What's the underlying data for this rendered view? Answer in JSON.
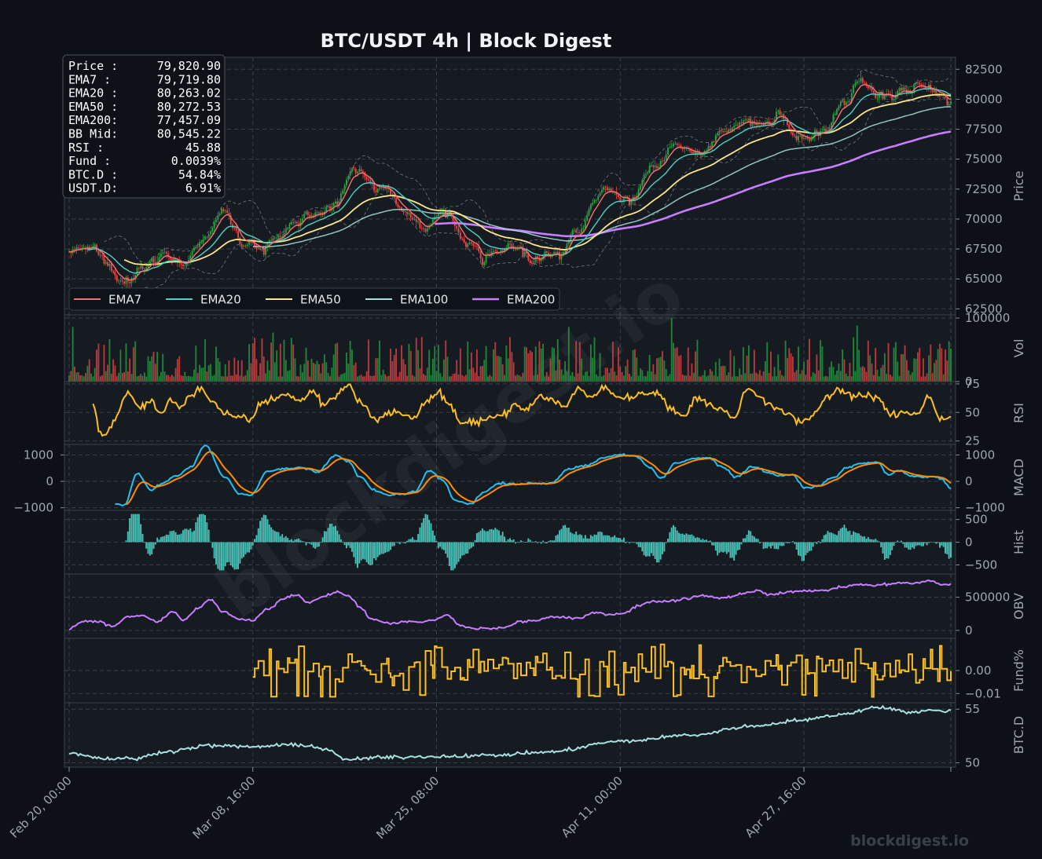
{
  "title": "BTC/USDT  4h  |  Block Digest",
  "watermark": "blockdigest.io",
  "footer": "blockdigest.io",
  "colors": {
    "background": "#0d1117",
    "panel": "#161b22",
    "grid": "#3a4048",
    "candle_up": "#26a641",
    "candle_down": "#ef4444",
    "ema7": "#f87171",
    "ema20": "#4fd1c5",
    "ema50": "#fde68a",
    "ema100": "#a7e0df",
    "ema200": "#c77dff",
    "rsi": "#fbbf24",
    "macd": "#22c0f0",
    "signal": "#ff8c00",
    "hist": "#4fd1c5",
    "obv": "#c77dff",
    "fund": "#fbbf24",
    "btcd": "#a7e0df"
  },
  "info_box": [
    {
      "label": "Price :",
      "value": "79,820.90"
    },
    {
      "label": "EMA7  :",
      "value": "79,719.80"
    },
    {
      "label": "EMA20 :",
      "value": "80,263.02"
    },
    {
      "label": "EMA50 :",
      "value": "80,272.53"
    },
    {
      "label": "EMA200:",
      "value": "77,457.09"
    },
    {
      "label": "BB Mid:",
      "value": "80,545.22"
    },
    {
      "label": "RSI   :",
      "value": "45.88"
    },
    {
      "label": "Fund  :",
      "value": "0.0039%"
    },
    {
      "label": "BTC.D :",
      "value": "54.84%"
    },
    {
      "label": "USDT.D:",
      "value": "6.91%"
    }
  ],
  "legend": [
    "EMA7",
    "EMA20",
    "EMA50",
    "EMA100",
    "EMA200"
  ],
  "chart_data": {
    "type": "line",
    "subtype": "candlestick with indicator panels",
    "x_tick_labels": [
      "Feb 20, 00:00",
      "Mar 08, 16:00",
      "Mar 25, 08:00",
      "Apr 11, 00:00",
      "Apr 27, 16:00"
    ],
    "bars": 481,
    "x_tick_bars": [
      0,
      100,
      200,
      300,
      400
    ],
    "grid": true,
    "legend_position": "bottom-left",
    "panels": [
      {
        "name": "Price",
        "ylabel": "Price",
        "ylim": [
          62000,
          83500
        ],
        "yticks": [
          62500,
          65000,
          67500,
          70000,
          72500,
          75000,
          77500,
          80000,
          82500
        ],
        "tick_labels": [
          "62500",
          "65000",
          "67500",
          "70000",
          "72500",
          "75000",
          "77500",
          "80000",
          "82500"
        ]
      },
      {
        "name": "Vol",
        "ylabel": "Vol",
        "ylim": [
          0,
          105000
        ],
        "yticks": [
          0,
          100000
        ],
        "tick_labels": [
          "0",
          "100000"
        ]
      },
      {
        "name": "RSI",
        "ylabel": "RSI",
        "ylim": [
          22,
          77
        ],
        "yticks": [
          25,
          50,
          75
        ],
        "tick_labels": [
          "25",
          "50",
          "75"
        ]
      },
      {
        "name": "MACD",
        "ylabel": "MACD",
        "ylim": [
          -1100,
          1400
        ],
        "yticks": [
          -1000,
          0,
          1000
        ],
        "tick_labels": [
          "−1000",
          "0",
          "1000"
        ],
        "left_tick_labels": [
          "−1000",
          "0",
          "1000"
        ]
      },
      {
        "name": "Hist",
        "ylabel": "Hist",
        "ylim": [
          -700,
          700
        ],
        "yticks": [
          -500,
          0,
          500
        ],
        "tick_labels": [
          "−500",
          "0",
          "500"
        ]
      },
      {
        "name": "OBV",
        "ylabel": "OBV",
        "ylim": [
          -120000,
          850000
        ],
        "yticks": [
          0,
          500000
        ],
        "tick_labels": [
          "0",
          "500000"
        ]
      },
      {
        "name": "Fund%",
        "ylabel": "Fund%",
        "ylim": [
          -0.014,
          0.014
        ],
        "yticks": [
          -0.01,
          0.0
        ],
        "tick_labels": [
          "−0.01",
          "0.00"
        ]
      },
      {
        "name": "BTC.D",
        "ylabel": "BTC.D",
        "ylim": [
          49.6,
          55.6
        ],
        "yticks": [
          50,
          55
        ],
        "tick_labels": [
          "50",
          "55"
        ]
      }
    ],
    "price_anchors": [
      [
        0,
        67500
      ],
      [
        15,
        67300
      ],
      [
        30,
        64700
      ],
      [
        45,
        66800
      ],
      [
        60,
        66500
      ],
      [
        75,
        68400
      ],
      [
        82,
        70900
      ],
      [
        95,
        68200
      ],
      [
        105,
        67600
      ],
      [
        118,
        69000
      ],
      [
        130,
        70200
      ],
      [
        145,
        71200
      ],
      [
        155,
        74200
      ],
      [
        168,
        72300
      ],
      [
        182,
        70600
      ],
      [
        190,
        69200
      ],
      [
        205,
        70400
      ],
      [
        215,
        68000
      ],
      [
        225,
        66400
      ],
      [
        238,
        67900
      ],
      [
        252,
        66800
      ],
      [
        268,
        67100
      ],
      [
        278,
        69500
      ],
      [
        292,
        72900
      ],
      [
        305,
        71600
      ],
      [
        318,
        74100
      ],
      [
        330,
        76300
      ],
      [
        342,
        75100
      ],
      [
        355,
        77100
      ],
      [
        368,
        78100
      ],
      [
        378,
        77800
      ],
      [
        388,
        78500
      ],
      [
        400,
        76700
      ],
      [
        410,
        77400
      ],
      [
        422,
        79600
      ],
      [
        432,
        81300
      ],
      [
        445,
        80300
      ],
      [
        458,
        81300
      ],
      [
        470,
        80900
      ],
      [
        480,
        79820.9
      ]
    ],
    "ema_start_bar": {
      "EMA7": 0,
      "EMA20": 10,
      "EMA50": 30,
      "EMA100": 100,
      "EMA200": 199
    },
    "rsi_anchors": [
      [
        13,
        58
      ],
      [
        17,
        30
      ],
      [
        22,
        35
      ],
      [
        25,
        45
      ],
      [
        32,
        67
      ],
      [
        38,
        55
      ],
      [
        45,
        60
      ],
      [
        50,
        47
      ],
      [
        55,
        62
      ],
      [
        60,
        55
      ],
      [
        66,
        65
      ],
      [
        72,
        71
      ],
      [
        78,
        58
      ],
      [
        85,
        48
      ],
      [
        92,
        46
      ],
      [
        98,
        44
      ],
      [
        105,
        58
      ],
      [
        112,
        63
      ],
      [
        118,
        66
      ],
      [
        126,
        60
      ],
      [
        133,
        69
      ],
      [
        139,
        56
      ],
      [
        145,
        65
      ],
      [
        152,
        74
      ],
      [
        159,
        59
      ],
      [
        166,
        44
      ],
      [
        174,
        49
      ],
      [
        181,
        49
      ],
      [
        188,
        46
      ],
      [
        195,
        60
      ],
      [
        201,
        68
      ],
      [
        207,
        57
      ],
      [
        213,
        40
      ],
      [
        220,
        41
      ],
      [
        227,
        46
      ],
      [
        235,
        47
      ],
      [
        242,
        56
      ],
      [
        249,
        52
      ],
      [
        256,
        64
      ],
      [
        263,
        61
      ],
      [
        270,
        55
      ],
      [
        277,
        71
      ],
      [
        284,
        64
      ],
      [
        291,
        72
      ],
      [
        298,
        65
      ],
      [
        305,
        63
      ],
      [
        313,
        68
      ],
      [
        320,
        67
      ],
      [
        328,
        52
      ],
      [
        335,
        46
      ],
      [
        341,
        63
      ],
      [
        348,
        58
      ],
      [
        355,
        54
      ],
      [
        362,
        44
      ],
      [
        369,
        70
      ],
      [
        376,
        63
      ],
      [
        384,
        54
      ],
      [
        391,
        49
      ],
      [
        398,
        41
      ],
      [
        405,
        46
      ],
      [
        412,
        63
      ],
      [
        419,
        70
      ],
      [
        426,
        64
      ],
      [
        433,
        66
      ],
      [
        440,
        63
      ],
      [
        447,
        48
      ],
      [
        454,
        51
      ],
      [
        461,
        49
      ],
      [
        468,
        62
      ],
      [
        475,
        44
      ],
      [
        480,
        46
      ]
    ],
    "macd_anchors": [
      [
        25,
        -850
      ],
      [
        30,
        -900
      ],
      [
        37,
        300
      ],
      [
        45,
        -340
      ],
      [
        50,
        -100
      ],
      [
        58,
        180
      ],
      [
        66,
        530
      ],
      [
        74,
        1350
      ],
      [
        85,
        150
      ],
      [
        93,
        -480
      ],
      [
        99,
        -500
      ],
      [
        108,
        380
      ],
      [
        118,
        480
      ],
      [
        127,
        520
      ],
      [
        135,
        340
      ],
      [
        145,
        980
      ],
      [
        152,
        750
      ],
      [
        158,
        200
      ],
      [
        166,
        -330
      ],
      [
        173,
        -500
      ],
      [
        181,
        -490
      ],
      [
        188,
        -370
      ],
      [
        196,
        420
      ],
      [
        203,
        80
      ],
      [
        210,
        -700
      ],
      [
        218,
        -870
      ],
      [
        226,
        -400
      ],
      [
        234,
        -80
      ],
      [
        244,
        -110
      ],
      [
        254,
        -60
      ],
      [
        262,
        -80
      ],
      [
        272,
        480
      ],
      [
        282,
        620
      ],
      [
        292,
        920
      ],
      [
        300,
        1020
      ],
      [
        308,
        970
      ],
      [
        316,
        520
      ],
      [
        322,
        120
      ],
      [
        331,
        710
      ],
      [
        340,
        870
      ],
      [
        348,
        890
      ],
      [
        356,
        530
      ],
      [
        363,
        150
      ],
      [
        372,
        570
      ],
      [
        381,
        330
      ],
      [
        388,
        210
      ],
      [
        394,
        260
      ],
      [
        400,
        -230
      ],
      [
        407,
        -200
      ],
      [
        416,
        150
      ],
      [
        424,
        530
      ],
      [
        432,
        690
      ],
      [
        440,
        720
      ],
      [
        446,
        250
      ],
      [
        452,
        410
      ],
      [
        458,
        210
      ],
      [
        464,
        160
      ],
      [
        471,
        180
      ],
      [
        475,
        80
      ],
      [
        480,
        -270
      ]
    ],
    "obv_anchors": [
      [
        0,
        10000
      ],
      [
        7,
        130000
      ],
      [
        16,
        130000
      ],
      [
        24,
        60000
      ],
      [
        32,
        210000
      ],
      [
        40,
        220000
      ],
      [
        48,
        130000
      ],
      [
        57,
        280000
      ],
      [
        62,
        150000
      ],
      [
        70,
        330000
      ],
      [
        77,
        460000
      ],
      [
        84,
        280000
      ],
      [
        93,
        160000
      ],
      [
        100,
        150000
      ],
      [
        108,
        320000
      ],
      [
        117,
        480000
      ],
      [
        124,
        540000
      ],
      [
        130,
        420000
      ],
      [
        139,
        520000
      ],
      [
        146,
        580000
      ],
      [
        152,
        520000
      ],
      [
        158,
        360000
      ],
      [
        165,
        160000
      ],
      [
        175,
        110000
      ],
      [
        184,
        130000
      ],
      [
        191,
        120000
      ],
      [
        199,
        160000
      ],
      [
        206,
        230000
      ],
      [
        213,
        70000
      ],
      [
        220,
        30000
      ],
      [
        229,
        30000
      ],
      [
        237,
        40000
      ],
      [
        245,
        130000
      ],
      [
        254,
        150000
      ],
      [
        262,
        200000
      ],
      [
        271,
        190000
      ],
      [
        278,
        180000
      ],
      [
        286,
        280000
      ],
      [
        293,
        240000
      ],
      [
        302,
        260000
      ],
      [
        310,
        370000
      ],
      [
        318,
        440000
      ],
      [
        326,
        440000
      ],
      [
        336,
        480000
      ],
      [
        345,
        530000
      ],
      [
        353,
        490000
      ],
      [
        361,
        510000
      ],
      [
        368,
        570000
      ],
      [
        374,
        600000
      ],
      [
        381,
        540000
      ],
      [
        388,
        560000
      ],
      [
        396,
        590000
      ],
      [
        404,
        600000
      ],
      [
        412,
        600000
      ],
      [
        421,
        660000
      ],
      [
        429,
        690000
      ],
      [
        437,
        680000
      ],
      [
        445,
        690000
      ],
      [
        453,
        720000
      ],
      [
        461,
        710000
      ],
      [
        468,
        750000
      ],
      [
        475,
        690000
      ],
      [
        480,
        700000
      ]
    ]
  }
}
